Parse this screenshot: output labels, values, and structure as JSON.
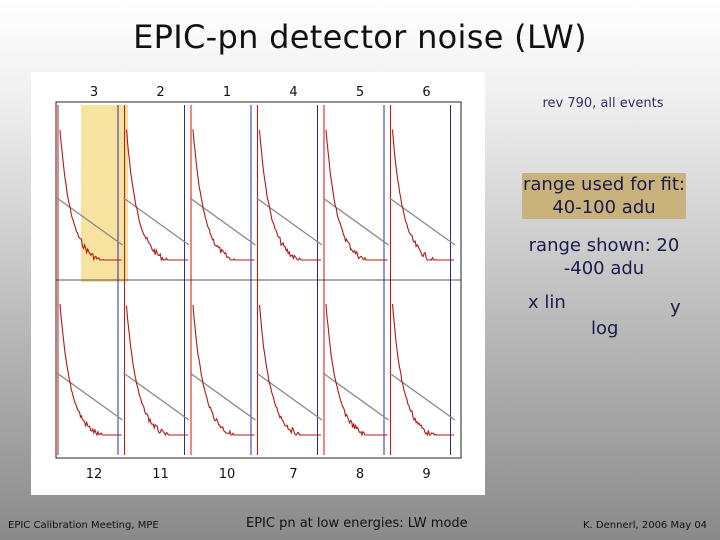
{
  "slide": {
    "title": "EPIC-pn detector noise (LW)",
    "rev_note": "rev 790, all events",
    "fit_range": "range used for fit: 40-100 adu",
    "shown_range": "range shown: 20 -400 adu",
    "x_label": "x lin",
    "y_label_part1": "y",
    "y_label_part2": "log"
  },
  "figure": {
    "top_ccd_labels": [
      "3",
      "2",
      "1",
      "4",
      "5",
      "6"
    ],
    "bottom_ccd_labels": [
      "12",
      "11",
      "10",
      "7",
      "8",
      "9"
    ],
    "colors": {
      "data_curve": "#b01818",
      "fit_line": "#888888",
      "red_axis": "#d01010",
      "blue_axis": "#2030a0",
      "highlight": "#f7e2a0"
    }
  },
  "footer": {
    "left": "EPIC Calibration Meeting, MPE",
    "center": "EPIC pn at low energies: LW mode",
    "right": "K. Dennerl, 2006 May 04"
  }
}
